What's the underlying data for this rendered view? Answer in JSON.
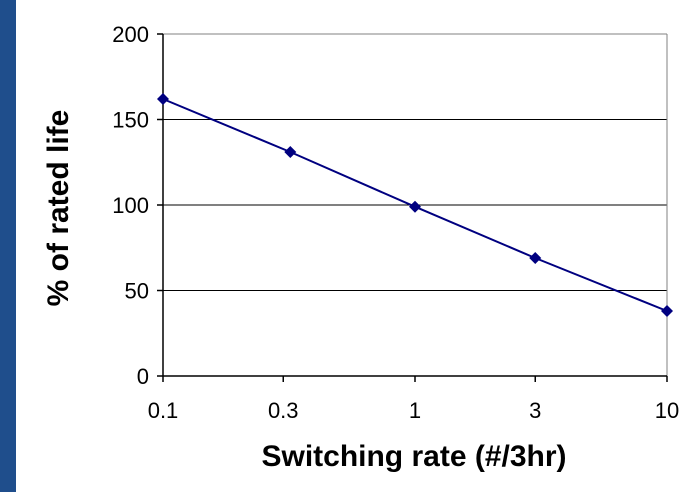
{
  "chart_data": {
    "type": "line",
    "xlabel": "Switching rate (#/3hr)",
    "ylabel": "% of rated life",
    "x_scale": "log",
    "x_ticks": [
      0.1,
      0.3,
      1,
      3,
      10
    ],
    "x_tick_labels": [
      "0.1",
      "0.3",
      "1",
      "3",
      "10"
    ],
    "y_ticks": [
      0,
      50,
      100,
      150,
      200
    ],
    "y_tick_labels": [
      "0",
      "50",
      "100",
      "150",
      "200"
    ],
    "xlim": [
      0.1,
      10
    ],
    "ylim": [
      0,
      200
    ],
    "grid": "horizontal",
    "series": [
      {
        "x": [
          0.1,
          0.32,
          1,
          3,
          10
        ],
        "y": [
          162,
          131,
          99,
          69,
          38
        ],
        "color": "#000080",
        "marker": "diamond"
      }
    ]
  },
  "colors": {
    "background_frame": "#1f4e8c",
    "plot_background": "#ffffff",
    "line": "#000080"
  }
}
